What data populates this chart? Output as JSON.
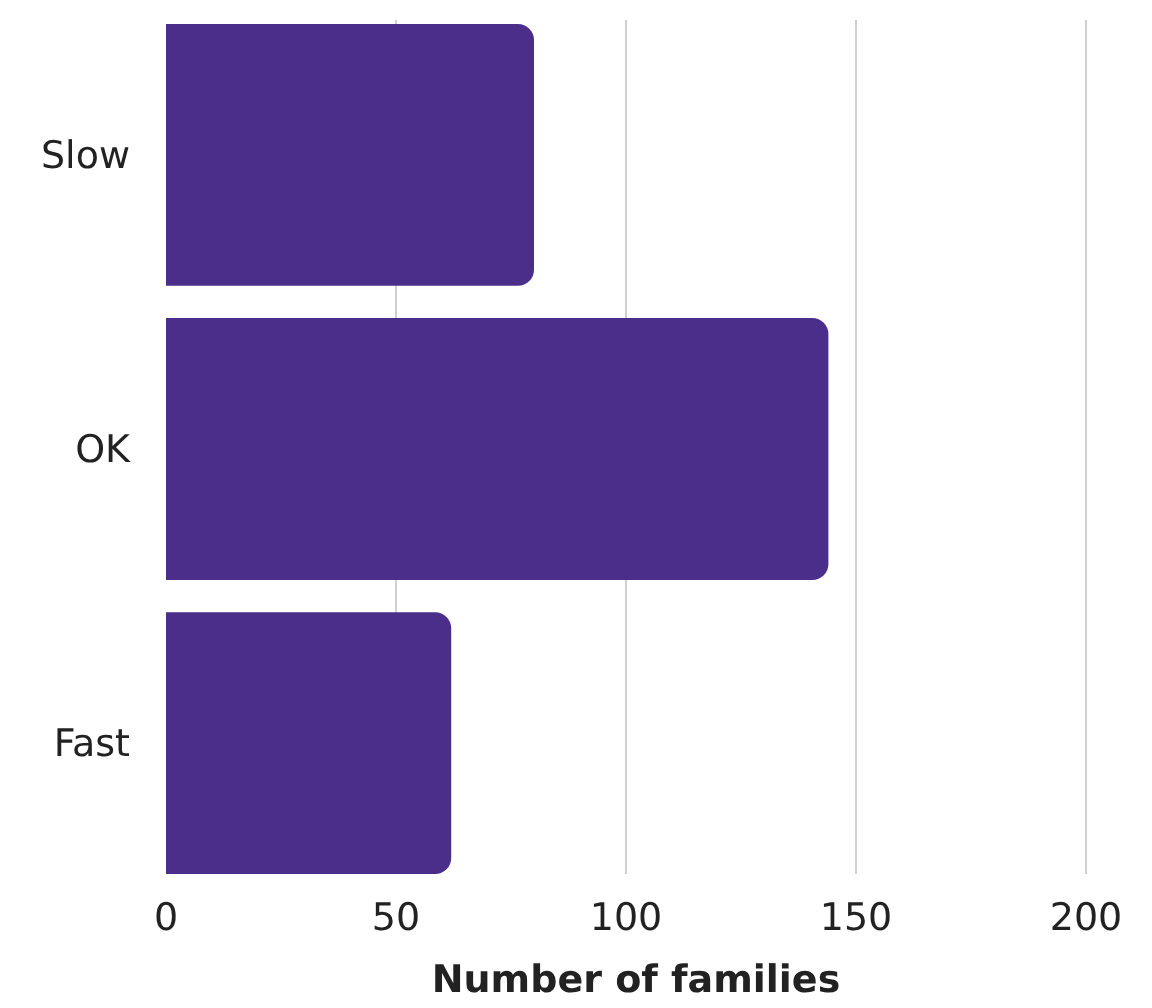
{
  "chart_data": {
    "type": "bar",
    "orientation": "horizontal",
    "categories": [
      "Slow",
      "OK",
      "Fast"
    ],
    "values": [
      80,
      144,
      62
    ],
    "color": "#4b2e8a",
    "xlabel": "Number of families",
    "xlim": [
      0,
      200
    ],
    "xticks": [
      0,
      50,
      100,
      150,
      200
    ],
    "grid": "x"
  }
}
